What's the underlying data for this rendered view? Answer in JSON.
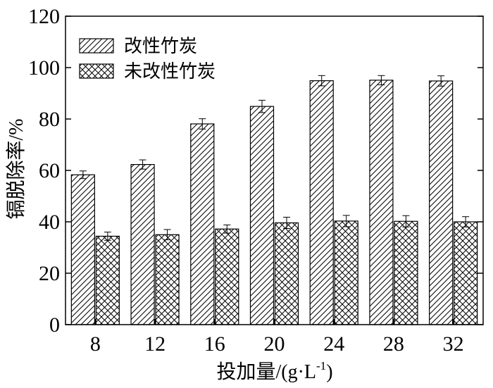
{
  "chart_data": {
    "type": "bar",
    "title": "",
    "categories": [
      "8",
      "12",
      "16",
      "20",
      "24",
      "28",
      "32"
    ],
    "series": [
      {
        "name": "改性竹炭",
        "pattern": "diagonal-hatch",
        "values": [
          58.3,
          62.3,
          78.1,
          84.9,
          94.9,
          95.1,
          94.8
        ],
        "errors": [
          1.5,
          1.8,
          2.0,
          2.4,
          2.0,
          1.8,
          2.0
        ]
      },
      {
        "name": "未改性竹炭",
        "pattern": "cross-hatch",
        "values": [
          34.4,
          35.0,
          37.2,
          39.6,
          40.3,
          40.2,
          40.0
        ],
        "errors": [
          1.6,
          2.0,
          1.6,
          2.2,
          2.2,
          2.2,
          2.0
        ]
      }
    ],
    "xlabel": "投加量/(g·L",
    "xlabel_sup": "-1",
    "xlabel_end": ")",
    "ylabel": "镉脱除率/%",
    "ylim": [
      0,
      120
    ],
    "yticks": [
      0,
      20,
      40,
      60,
      80,
      100,
      120
    ],
    "legend_position": "top-left",
    "grid": false,
    "colors": {
      "bar_stroke": "#000000",
      "hatch": "#000000",
      "background": "#ffffff"
    }
  }
}
